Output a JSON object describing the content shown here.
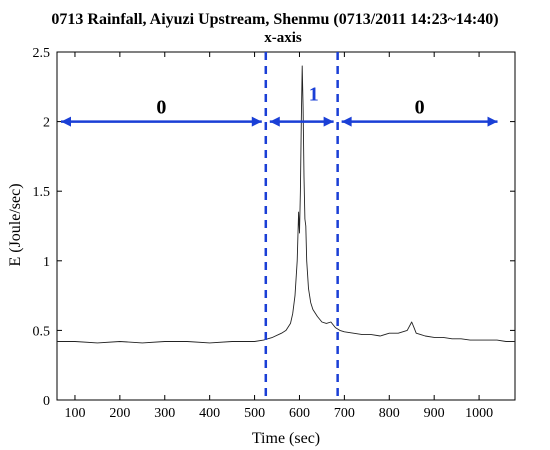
{
  "chart_data": {
    "type": "line",
    "title": "0713 Rainfall, Aiyuzi Upstream, Shenmu (0713/2011 14:23~14:40)",
    "subtitle": "x-axis",
    "xlabel": "Time (sec)",
    "ylabel": "E (Joule/sec)",
    "xlim": [
      60,
      1080
    ],
    "ylim": [
      0,
      2.5
    ],
    "xticks": [
      "100",
      "200",
      "300",
      "400",
      "500",
      "600",
      "700",
      "800",
      "900",
      "1000"
    ],
    "yticks": [
      "0",
      "0.5",
      "1",
      "1.5",
      "2",
      "2.5"
    ],
    "grid": false,
    "series": [
      {
        "color": "#222222",
        "x": [
          60,
          100,
          150,
          200,
          250,
          300,
          350,
          400,
          450,
          500,
          520,
          540,
          560,
          570,
          580,
          585,
          590,
          595,
          598,
          600,
          602,
          604,
          606,
          608,
          610,
          612,
          614,
          616,
          618,
          620,
          625,
          630,
          640,
          650,
          660,
          670,
          680,
          690,
          700,
          720,
          740,
          760,
          780,
          800,
          820,
          840,
          850,
          855,
          860,
          870,
          880,
          900,
          920,
          940,
          960,
          980,
          1000,
          1020,
          1040,
          1060,
          1080
        ],
        "y": [
          0.42,
          0.42,
          0.41,
          0.42,
          0.41,
          0.42,
          0.42,
          0.41,
          0.42,
          0.42,
          0.43,
          0.45,
          0.48,
          0.5,
          0.55,
          0.62,
          0.75,
          1.0,
          1.35,
          1.2,
          1.5,
          2.0,
          2.4,
          2.1,
          1.6,
          1.3,
          1.25,
          1.0,
          0.9,
          0.8,
          0.7,
          0.65,
          0.6,
          0.56,
          0.55,
          0.56,
          0.52,
          0.5,
          0.49,
          0.48,
          0.47,
          0.47,
          0.46,
          0.48,
          0.48,
          0.5,
          0.56,
          0.52,
          0.48,
          0.47,
          0.46,
          0.45,
          0.45,
          0.44,
          0.44,
          0.43,
          0.43,
          0.43,
          0.43,
          0.42,
          0.42
        ]
      }
    ],
    "dividers": {
      "x": [
        525,
        685
      ],
      "color": "#1a3fd6"
    },
    "segments": [
      {
        "label": "0",
        "x_start": 60,
        "x_end": 525,
        "y": 2.0,
        "color": "#000000"
      },
      {
        "label": "1",
        "x_start": 525,
        "x_end": 685,
        "y": 2.0,
        "color": "#1a3fd6"
      },
      {
        "label": "0",
        "x_start": 685,
        "x_end": 1050,
        "y": 2.0,
        "color": "#000000"
      }
    ],
    "arrow_color": "#1a3fd6"
  }
}
